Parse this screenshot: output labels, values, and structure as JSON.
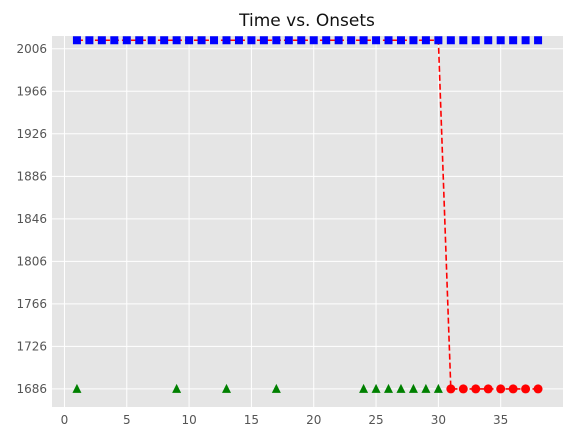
{
  "chart_data": {
    "type": "scatter",
    "title": "Time vs. Onsets",
    "xlabel": "",
    "ylabel": "",
    "xlim": [
      -1,
      40
    ],
    "ylim": [
      1669,
      2018
    ],
    "x_ticks": [
      0,
      5,
      10,
      15,
      20,
      25,
      30,
      35
    ],
    "y_ticks": [
      1686,
      1726,
      1766,
      1806,
      1846,
      1886,
      1926,
      1966,
      2006
    ],
    "grid": true,
    "legend": "none",
    "colors": {
      "background": "#e5e5e5",
      "grid": "#ffffff",
      "blue_series": "#0000ff",
      "green_series": "#008000",
      "red_series": "#ff0000",
      "dashed_line": "#ff0000"
    },
    "series": [
      {
        "marker": "square",
        "color": "#0000ff",
        "x": [
          1,
          2,
          3,
          4,
          5,
          6,
          7,
          8,
          9,
          10,
          11,
          12,
          13,
          14,
          15,
          16,
          17,
          18,
          19,
          20,
          21,
          22,
          23,
          24,
          25,
          26,
          27,
          28,
          29,
          30,
          31,
          32,
          33,
          34,
          35,
          36,
          37,
          38
        ],
        "y": [
          2014,
          2014,
          2014,
          2014,
          2014,
          2014,
          2014,
          2014,
          2014,
          2014,
          2014,
          2014,
          2014,
          2014,
          2014,
          2014,
          2014,
          2014,
          2014,
          2014,
          2014,
          2014,
          2014,
          2014,
          2014,
          2014,
          2014,
          2014,
          2014,
          2014,
          2014,
          2014,
          2014,
          2014,
          2014,
          2014,
          2014,
          2014
        ]
      },
      {
        "marker": "triangle",
        "color": "#008000",
        "x": [
          1,
          9,
          13,
          17,
          24,
          25,
          26,
          27,
          28,
          29,
          30
        ],
        "y": [
          1686,
          1686,
          1686,
          1686,
          1686,
          1686,
          1686,
          1686,
          1686,
          1686,
          1686
        ]
      },
      {
        "marker": "circle",
        "color": "#ff0000",
        "x": [
          31,
          32,
          33,
          34,
          35,
          36,
          37,
          38
        ],
        "y": [
          1686,
          1686,
          1686,
          1686,
          1686,
          1686,
          1686,
          1686
        ]
      },
      {
        "marker": "dashed-line",
        "color": "#ff0000",
        "x": [
          1,
          2,
          3,
          4,
          5,
          6,
          7,
          8,
          9,
          10,
          11,
          12,
          13,
          14,
          15,
          16,
          17,
          18,
          19,
          20,
          21,
          22,
          23,
          24,
          25,
          26,
          27,
          28,
          29,
          30,
          31,
          32,
          33,
          34,
          35,
          36,
          37,
          38
        ],
        "y": [
          2014,
          2014,
          2014,
          2014,
          2014,
          2014,
          2014,
          2014,
          2014,
          2014,
          2014,
          2014,
          2014,
          2014,
          2014,
          2014,
          2014,
          2014,
          2014,
          2014,
          2014,
          2014,
          2014,
          2014,
          2014,
          2014,
          2014,
          2014,
          2014,
          2014,
          1686,
          1686,
          1686,
          1686,
          1686,
          1686,
          1686,
          1686
        ]
      }
    ]
  }
}
